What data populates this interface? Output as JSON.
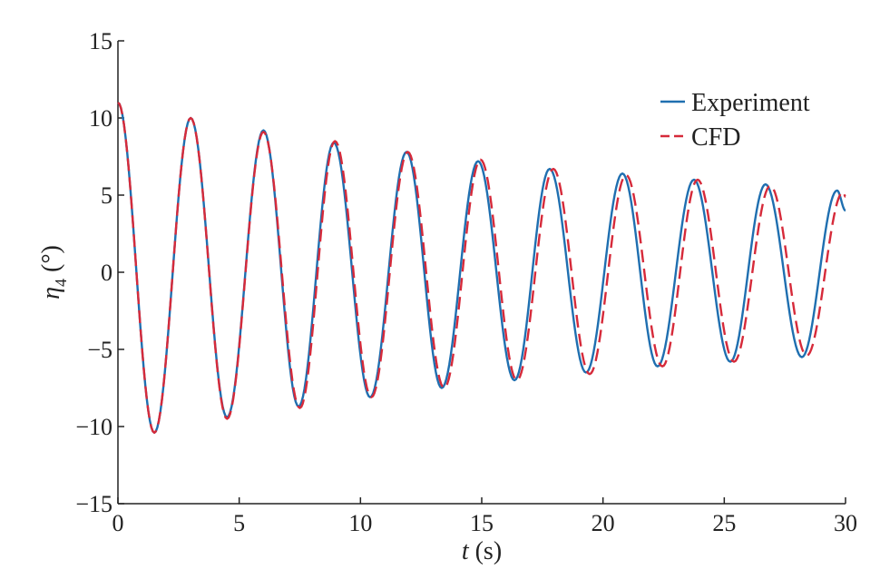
{
  "chart_data": {
    "type": "line",
    "title": "",
    "xlabel_var": "t",
    "xlabel_unit": " (s)",
    "ylabel_var": "η",
    "ylabel_sub": "4",
    "ylabel_unit": " (°)",
    "xlim": [
      0,
      30
    ],
    "ylim": [
      -15,
      15
    ],
    "xticks": [
      0,
      5,
      10,
      15,
      20,
      25,
      30
    ],
    "yticks": [
      -15,
      -10,
      -5,
      0,
      5,
      10,
      15
    ],
    "grid": false,
    "legend_position": "top-right",
    "series": [
      {
        "name": "Experiment",
        "color": "#1f6fb0",
        "style": "solid",
        "x": [
          0,
          1.5,
          3.0,
          4.5,
          6.0,
          7.45,
          8.9,
          10.4,
          11.9,
          13.35,
          14.85,
          16.35,
          17.8,
          19.3,
          20.8,
          22.25,
          23.75,
          25.25,
          26.7,
          28.2,
          29.65,
          30
        ],
        "y": [
          11,
          -10.4,
          10.0,
          -9.4,
          9.2,
          -8.7,
          8.4,
          -8.1,
          7.8,
          -7.5,
          7.2,
          -7.0,
          6.7,
          -6.5,
          6.4,
          -6.1,
          6.0,
          -5.8,
          5.7,
          -5.5,
          5.3,
          4.0
        ]
      },
      {
        "name": "CFD",
        "color": "#d62a3a",
        "style": "dashed",
        "x": [
          0,
          1.5,
          3.0,
          4.5,
          6.0,
          7.5,
          8.95,
          10.45,
          11.95,
          13.45,
          14.95,
          16.45,
          17.95,
          19.45,
          20.95,
          22.45,
          23.9,
          25.4,
          26.9,
          28.4,
          29.9,
          30
        ],
        "y": [
          11,
          -10.4,
          10.0,
          -9.5,
          9.1,
          -8.8,
          8.5,
          -8.1,
          7.8,
          -7.5,
          7.3,
          -7.0,
          6.7,
          -6.6,
          6.3,
          -6.1,
          6.0,
          -5.8,
          5.6,
          -5.4,
          5.2,
          4.9
        ]
      }
    ]
  }
}
